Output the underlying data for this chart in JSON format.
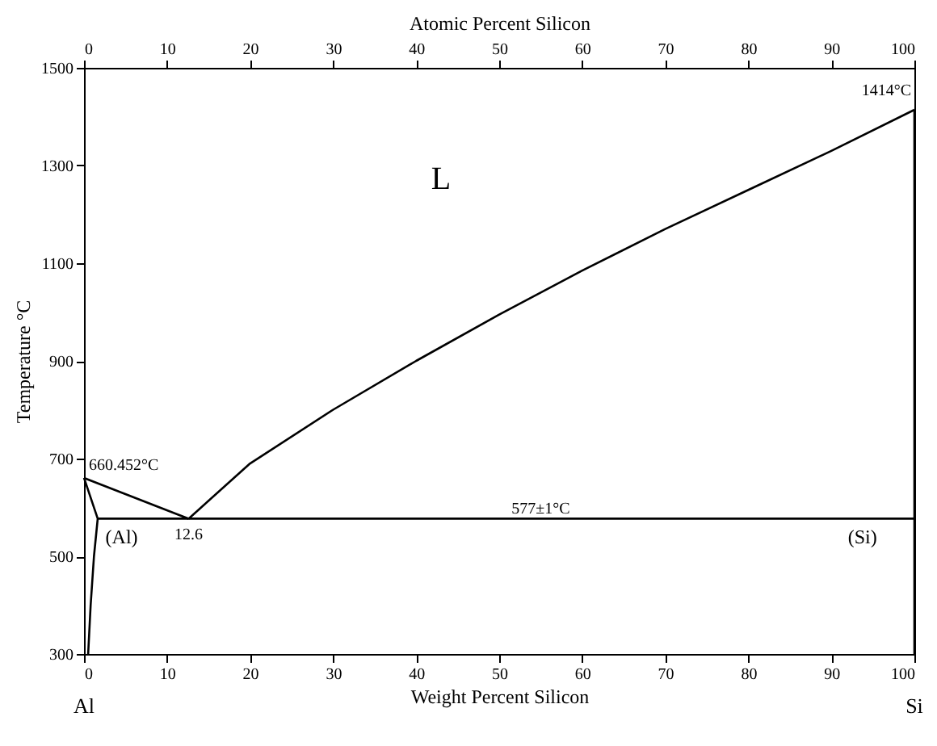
{
  "chart_data": {
    "type": "line",
    "xlabel": "Weight Percent Silicon",
    "x2label": "Atomic Percent Silicon",
    "ylabel": "Temperature °C",
    "xlim": [
      0,
      100
    ],
    "xticks": [
      0,
      10,
      20,
      30,
      40,
      50,
      60,
      70,
      80,
      90,
      100
    ],
    "x2lim": [
      0,
      100
    ],
    "x2ticks": [
      0,
      10,
      20,
      30,
      40,
      50,
      60,
      70,
      80,
      90,
      100
    ],
    "ylim": [
      300,
      1500
    ],
    "yticks": [
      300,
      500,
      700,
      900,
      1100,
      1300,
      1500
    ],
    "grid": false,
    "marker": "none",
    "line_style": "solid",
    "series": [
      {
        "color": "#000000",
        "x": [
          0,
          12.6
        ],
        "values": [
          660.452,
          577
        ]
      },
      {
        "color": "#000000",
        "x": [
          12.6,
          20,
          30,
          40,
          50,
          60,
          70,
          80,
          90,
          100
        ],
        "values": [
          577,
          690,
          800,
          900,
          995,
          1085,
          1170,
          1250,
          1330,
          1414
        ]
      },
      {
        "color": "#000000",
        "x": [
          1.65,
          100
        ],
        "values": [
          577,
          577
        ]
      },
      {
        "color": "#000000",
        "x": [
          0,
          1.65,
          1.2,
          0.8,
          0.5
        ],
        "values": [
          660.452,
          577,
          500,
          400,
          300
        ]
      },
      {
        "color": "#000000",
        "x": [
          100,
          100
        ],
        "values": [
          300,
          1414
        ]
      }
    ],
    "annotations": [
      "L",
      {
        "text": "660.452°C",
        "x": 0,
        "y": 660.452
      },
      {
        "text": "12.6",
        "x": 12.6,
        "y": 577
      },
      {
        "text": "577±1°C",
        "x": 55,
        "y": 577
      },
      {
        "text": "1414°C",
        "x": 100,
        "y": 1414
      },
      {
        "text": "(Al)",
        "x": 2,
        "y": 540
      },
      "(Si)",
      "Al",
      "Si"
    ]
  }
}
